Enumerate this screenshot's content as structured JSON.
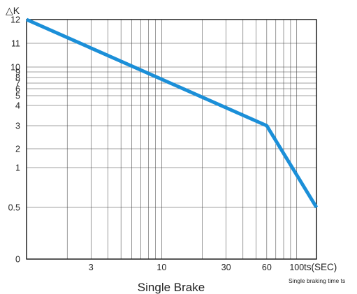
{
  "chart_data": {
    "type": "line",
    "title": "Single Brake",
    "ylabel": "△K",
    "xlabel": "ts(SEC)",
    "x_caption": "Single braking time ts",
    "x_scale": "log",
    "grid": true,
    "x_ticks": [
      3,
      10,
      30,
      60,
      100
    ],
    "y_ticks": [
      "12",
      "11",
      "10",
      "9",
      "8",
      "7",
      "6",
      "5",
      "4",
      "3",
      "2",
      "1",
      "0.5",
      "0"
    ],
    "series": [
      {
        "color": "#1b8fd8",
        "points": [
          {
            "x": 1,
            "y": "12"
          },
          {
            "x": 60,
            "y": "3"
          },
          {
            "x": 140,
            "y": "0.5"
          }
        ]
      }
    ]
  }
}
